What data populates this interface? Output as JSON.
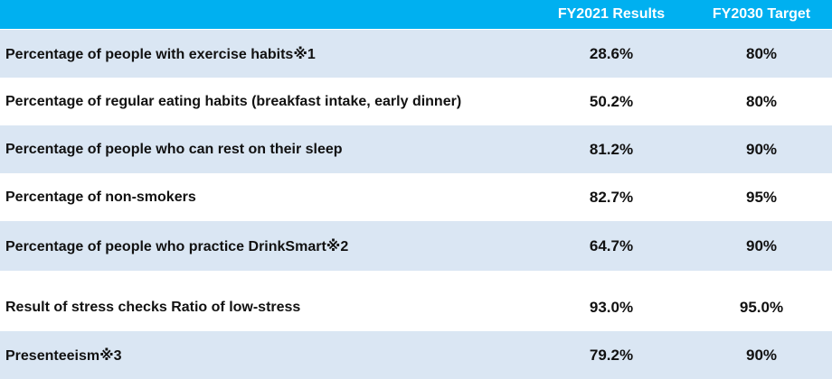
{
  "header": {
    "label": "",
    "result": "FY2021 Results",
    "target": "FY2030 Target"
  },
  "rows": [
    {
      "label": "Percentage of people with exercise habits※1",
      "result": "28.6%",
      "target": "80%"
    },
    {
      "label": "Percentage of regular eating habits (breakfast intake, early dinner)",
      "result": "50.2%",
      "target": "80%"
    },
    {
      "label": "Percentage of people who can rest on their sleep",
      "result": "81.2%",
      "target": "90%"
    },
    {
      "label": "Percentage of non-smokers",
      "result": "82.7%",
      "target": "95%"
    },
    {
      "label": "Percentage of people who practice DrinkSmart※2",
      "result": "64.7%",
      "target": "90%"
    },
    {
      "label": "Result of stress checks Ratio of low-stress",
      "result": "93.0%",
      "target": "95.0%"
    },
    {
      "label": "Presenteeism※3",
      "result": "79.2%",
      "target": "90%"
    }
  ],
  "colors": {
    "header_bg": "#00b0f0",
    "row_shade": "#dae6f3",
    "row_plain": "#ffffff"
  }
}
